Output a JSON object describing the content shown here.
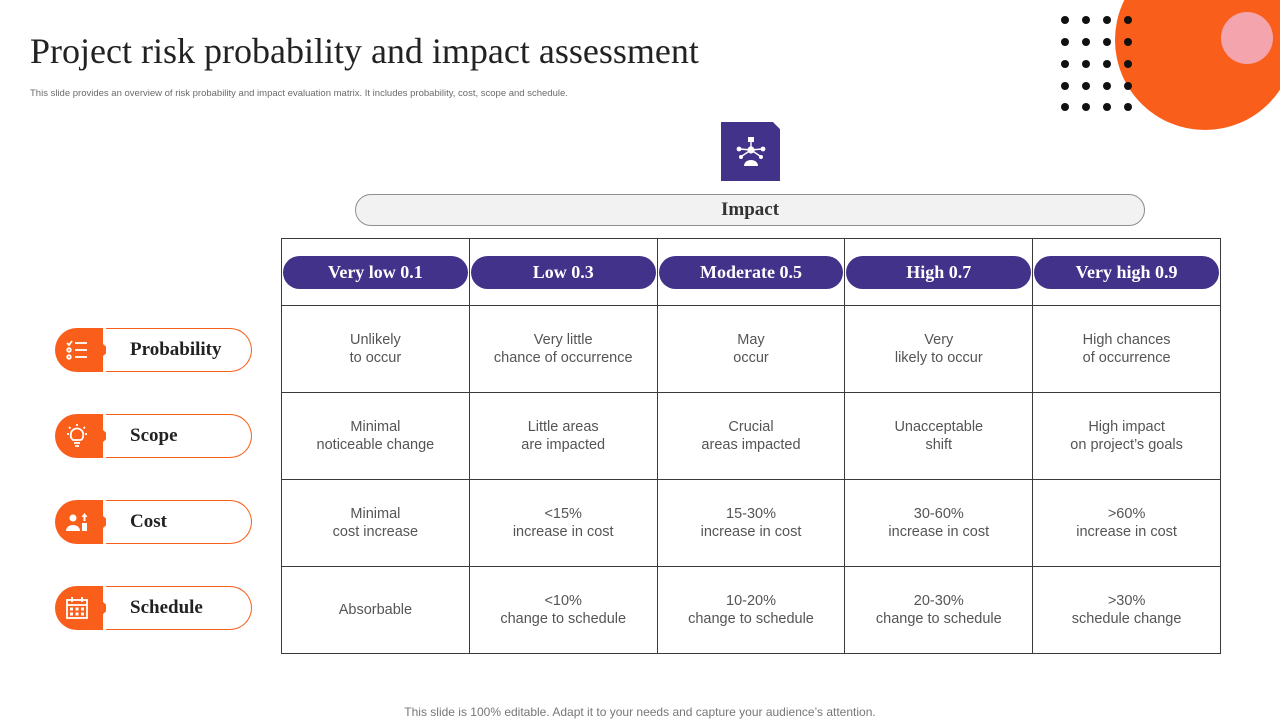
{
  "header": {
    "title": "Project risk probability and impact assessment",
    "subtitle": "This slide provides an overview of risk probability and impact  evaluation matrix. It includes probability, cost, scope and schedule."
  },
  "impact": {
    "label": "Impact",
    "icon": "presenter-network-icon"
  },
  "columns": [
    {
      "label": "Very low 0.1"
    },
    {
      "label": "Low 0.3"
    },
    {
      "label": "Moderate 0.5"
    },
    {
      "label": "High 0.7"
    },
    {
      "label": "Very high 0.9"
    }
  ],
  "rows": [
    {
      "label": "Probability",
      "icon": "checklist-icon",
      "cells": [
        {
          "l1": "Unlikely",
          "l2": "to occur"
        },
        {
          "l1": "Very little",
          "l2": "chance of occurrence"
        },
        {
          "l1": "May",
          "l2": "occur"
        },
        {
          "l1": "Very",
          "l2": "likely to occur"
        },
        {
          "l1": "High chances",
          "l2": "of occurrence"
        }
      ]
    },
    {
      "label": "Scope",
      "icon": "idea-bulb-icon",
      "cells": [
        {
          "l1": "Minimal",
          "l2": "noticeable change"
        },
        {
          "l1": "Little areas",
          "l2": "are impacted"
        },
        {
          "l1": "Crucial",
          "l2": "areas impacted"
        },
        {
          "l1": "Unacceptable",
          "l2": "shift"
        },
        {
          "l1": "High impact",
          "l2": "on project’s goals"
        }
      ]
    },
    {
      "label": "Cost",
      "icon": "person-cost-icon",
      "cells": [
        {
          "l1": "Minimal",
          "l2": "cost increase"
        },
        {
          "l1": "<15%",
          "l2": "increase in cost"
        },
        {
          "l1": "15-30%",
          "l2": "increase in cost"
        },
        {
          "l1": "30-60%",
          "l2": "increase in cost"
        },
        {
          "l1": ">60%",
          "l2": "increase in cost"
        }
      ]
    },
    {
      "label": "Schedule",
      "icon": "calendar-icon",
      "cells": [
        {
          "l1": "Absorbable",
          "l2": ""
        },
        {
          "l1": "<10%",
          "l2": "change to schedule"
        },
        {
          "l1": "10-20%",
          "l2": "change to schedule"
        },
        {
          "l1": "20-30%",
          "l2": "change to schedule"
        },
        {
          "l1": ">30%",
          "l2": "schedule change"
        }
      ]
    }
  ],
  "colors": {
    "accent_orange": "#f95f1a",
    "header_purple": "#42328a",
    "decor_pink": "#f3a4ad"
  },
  "footer": {
    "text": "This slide is 100% editable. Adapt it to your needs and capture your audience’s attention."
  }
}
